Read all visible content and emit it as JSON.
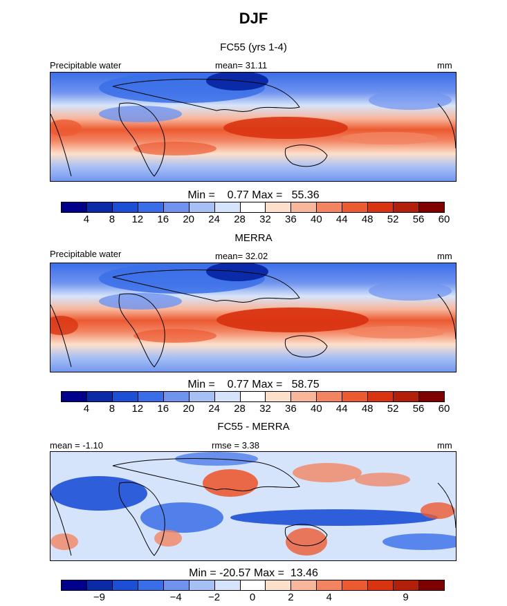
{
  "title": "DJF",
  "panels": [
    {
      "title": "FC55 (yrs 1-4)",
      "left_label": "Precipitable water",
      "center_label": "mean=  31.11",
      "units": "mm",
      "minmax": "Min =    0.77 Max =   55.36",
      "tick_labels": [
        "4",
        "8",
        "12",
        "16",
        "20",
        "24",
        "28",
        "32",
        "36",
        "40",
        "44",
        "48",
        "52",
        "56",
        "60"
      ],
      "colors": [
        "#00008b",
        "#0a2aa8",
        "#1c4fd6",
        "#3a6ee8",
        "#6f93ef",
        "#a6bff5",
        "#d6e4fb",
        "#ffffff",
        "#fde0cc",
        "#f8b69a",
        "#f28462",
        "#ec5a32",
        "#d93412",
        "#b21f0a",
        "#7f0000"
      ]
    },
    {
      "title": "MERRA",
      "left_label": "Precipitable water",
      "center_label": "mean=  32.02",
      "units": "mm",
      "minmax": "Min =    0.77 Max =   58.75",
      "tick_labels": [
        "4",
        "8",
        "12",
        "16",
        "20",
        "24",
        "28",
        "32",
        "36",
        "40",
        "44",
        "48",
        "52",
        "56",
        "60"
      ],
      "colors": [
        "#00008b",
        "#0a2aa8",
        "#1c4fd6",
        "#3a6ee8",
        "#6f93ef",
        "#a6bff5",
        "#d6e4fb",
        "#ffffff",
        "#fde0cc",
        "#f8b69a",
        "#f28462",
        "#ec5a32",
        "#d93412",
        "#b21f0a",
        "#7f0000"
      ]
    },
    {
      "title": "FC55 - MERRA",
      "left_label": "mean =  -1.10",
      "center_label": "rmse =    3.38",
      "units": "mm",
      "minmax": "Min = -20.57 Max =  13.46",
      "tick_labels": [
        "-9",
        "-4",
        "-2",
        "0",
        "2",
        "4",
        "9"
      ],
      "colors": [
        "#00008b",
        "#0a2aa8",
        "#1c4fd6",
        "#3a6ee8",
        "#6f93ef",
        "#a6bff5",
        "#d6e4fb",
        "#ffffff",
        "#fde0cc",
        "#f8b69a",
        "#f28462",
        "#ec5a32",
        "#d93412",
        "#b21f0a",
        "#7f0000"
      ]
    }
  ],
  "chart_data": [
    {
      "type": "heatmap",
      "title": "FC55 (yrs 1-4)",
      "variable": "Precipitable water",
      "units": "mm",
      "mean": 31.11,
      "min": 0.77,
      "max": 55.36,
      "colorbar_ticks": [
        4,
        8,
        12,
        16,
        20,
        24,
        28,
        32,
        36,
        40,
        44,
        48,
        52,
        56,
        60
      ]
    },
    {
      "type": "heatmap",
      "title": "MERRA",
      "variable": "Precipitable water",
      "units": "mm",
      "mean": 32.02,
      "min": 0.77,
      "max": 58.75,
      "colorbar_ticks": [
        4,
        8,
        12,
        16,
        20,
        24,
        28,
        32,
        36,
        40,
        44,
        48,
        52,
        56,
        60
      ]
    },
    {
      "type": "heatmap",
      "title": "FC55 - MERRA",
      "units": "mm",
      "mean": -1.1,
      "rmse": 3.38,
      "min": -20.57,
      "max": 13.46,
      "colorbar_ticks": [
        -9,
        -4,
        -2,
        0,
        2,
        4,
        9
      ]
    }
  ]
}
